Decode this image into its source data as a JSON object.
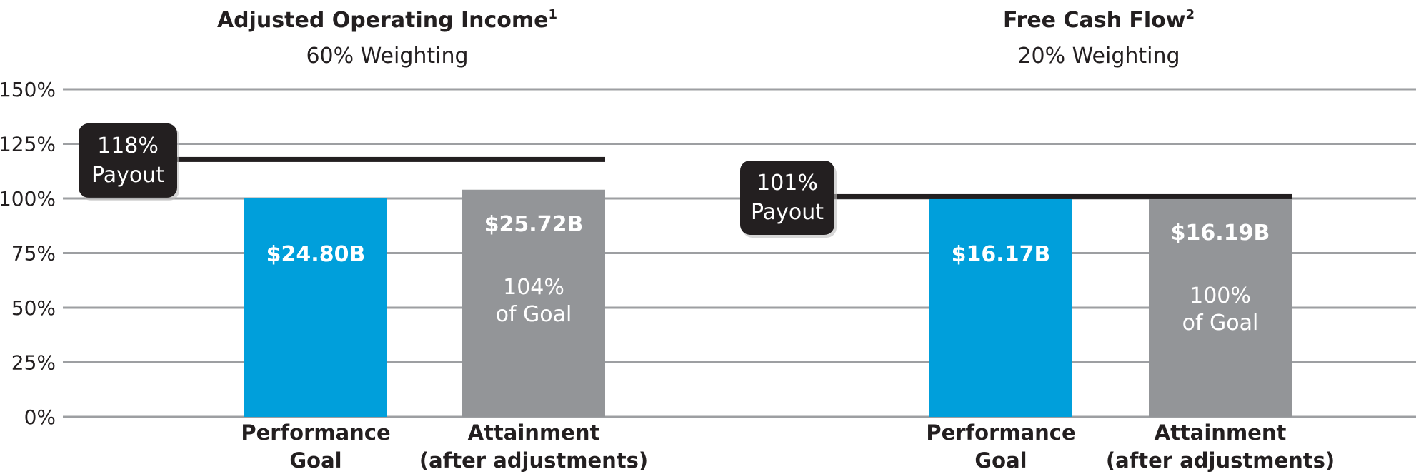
{
  "chart_data": [
    {
      "type": "bar",
      "title": "Adjusted Operating Income",
      "title_superscript": "1",
      "subtitle": "60% Weighting",
      "ylim": [
        0,
        150
      ],
      "y_ticks": [
        "0%",
        "25%",
        "50%",
        "75%",
        "100%",
        "125%",
        "150%"
      ],
      "y_tick_values": [
        0,
        25,
        50,
        75,
        100,
        125,
        150
      ],
      "grid": true,
      "categories": [
        [
          "Performance",
          "Goal"
        ],
        [
          "Attainment",
          "(after adjustments)"
        ]
      ],
      "values": [
        100,
        104
      ],
      "colors": [
        "#009fdb",
        "#939598"
      ],
      "value_labels": [
        "$24.80B",
        "$25.72B"
      ],
      "pct_labels": [
        null,
        [
          "104%",
          "of Goal"
        ]
      ],
      "payout": {
        "value": 118,
        "label": [
          "118%",
          "Payout"
        ]
      }
    },
    {
      "type": "bar",
      "title": "Free Cash Flow",
      "title_superscript": "2",
      "subtitle": "20% Weighting",
      "ylim": [
        0,
        150
      ],
      "categories": [
        [
          "Performance",
          "Goal"
        ],
        [
          "Attainment",
          "(after adjustments)"
        ]
      ],
      "values": [
        100,
        100
      ],
      "colors": [
        "#009fdb",
        "#939598"
      ],
      "value_labels": [
        "$16.17B",
        "$16.19B"
      ],
      "pct_labels": [
        null,
        [
          "100%",
          "of Goal"
        ]
      ],
      "payout": {
        "value": 101,
        "label": [
          "101%",
          "Payout"
        ]
      }
    }
  ]
}
